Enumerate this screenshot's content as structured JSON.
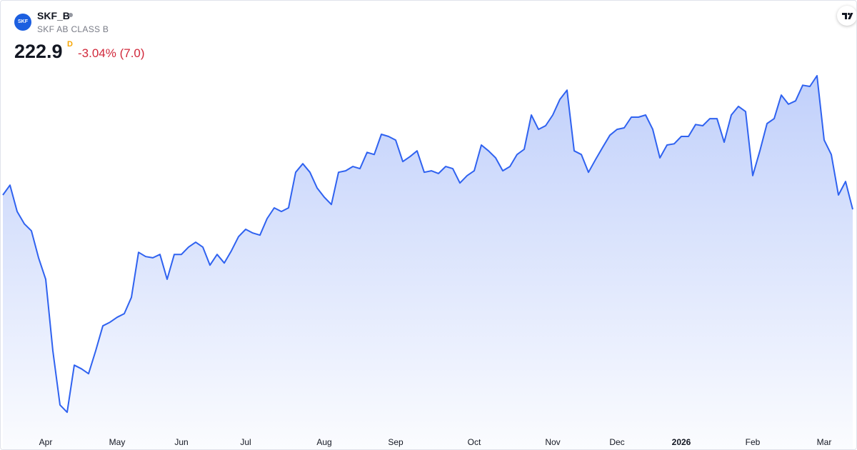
{
  "header": {
    "logo": "SKF",
    "symbol": "SKF_B",
    "description": "SKF AB CLASS B",
    "price": 222.9,
    "resolution": "D",
    "change": "-3.04% (7.0)"
  },
  "chart_data": {
    "type": "area",
    "color": "#2f62f0",
    "categories": [
      null,
      null,
      null,
      null,
      null,
      null,
      "Apr",
      null,
      null,
      null,
      null,
      null,
      null,
      null,
      null,
      null,
      "May",
      null,
      null,
      null,
      null,
      null,
      null,
      null,
      null,
      "Jun",
      null,
      null,
      null,
      null,
      null,
      null,
      null,
      null,
      "Jul",
      null,
      null,
      null,
      null,
      null,
      null,
      null,
      null,
      null,
      null,
      "Aug",
      null,
      null,
      null,
      null,
      null,
      null,
      null,
      null,
      null,
      "Sep",
      null,
      null,
      null,
      null,
      null,
      null,
      null,
      null,
      null,
      null,
      "Oct",
      null,
      null,
      null,
      null,
      null,
      null,
      null,
      null,
      null,
      null,
      "Nov",
      null,
      null,
      null,
      null,
      null,
      null,
      null,
      null,
      "Dec",
      null,
      null,
      null,
      null,
      null,
      null,
      null,
      null,
      "2026",
      null,
      null,
      null,
      null,
      null,
      null,
      null,
      null,
      null,
      "Feb",
      null,
      null,
      null,
      null,
      null,
      null,
      null,
      null,
      null,
      "Mar",
      null,
      null,
      null,
      null
    ],
    "values": [
      227.6,
      230.8,
      222.2,
      218.2,
      215.9,
      207.1,
      200.1,
      176.8,
      159.1,
      156.7,
      172.1,
      170.9,
      169.3,
      176.8,
      184.9,
      186.1,
      187.7,
      188.9,
      194.2,
      208.9,
      207.5,
      207.1,
      208.2,
      200.1,
      208.2,
      208.2,
      210.6,
      212.2,
      210.6,
      204.7,
      208.2,
      205.4,
      209.4,
      214.0,
      216.4,
      215.2,
      214.5,
      219.9,
      223.4,
      222.2,
      223.4,
      235.0,
      237.8,
      235.0,
      229.9,
      226.9,
      224.5,
      235.0,
      235.5,
      236.9,
      236.2,
      241.5,
      240.8,
      247.4,
      246.7,
      245.5,
      238.5,
      240.1,
      242.0,
      235.0,
      235.5,
      234.6,
      236.9,
      236.2,
      231.5,
      233.9,
      235.5,
      243.9,
      242.0,
      239.7,
      235.5,
      236.9,
      240.8,
      242.5,
      253.7,
      249.0,
      250.2,
      253.7,
      258.8,
      261.8,
      242.0,
      240.8,
      235.0,
      239.2,
      243.2,
      247.1,
      249.0,
      249.5,
      253.0,
      253.0,
      253.7,
      249.0,
      239.7,
      243.9,
      244.3,
      246.7,
      246.7,
      250.6,
      250.2,
      252.5,
      252.5,
      244.8,
      253.7,
      256.5,
      254.8,
      233.9,
      242.0,
      250.9,
      252.5,
      260.2,
      257.2,
      258.3,
      263.4,
      263.0,
      266.5,
      245.5,
      240.8,
      227.6,
      232.0,
      222.9
    ],
    "ylim": [
      150,
      270
    ]
  }
}
